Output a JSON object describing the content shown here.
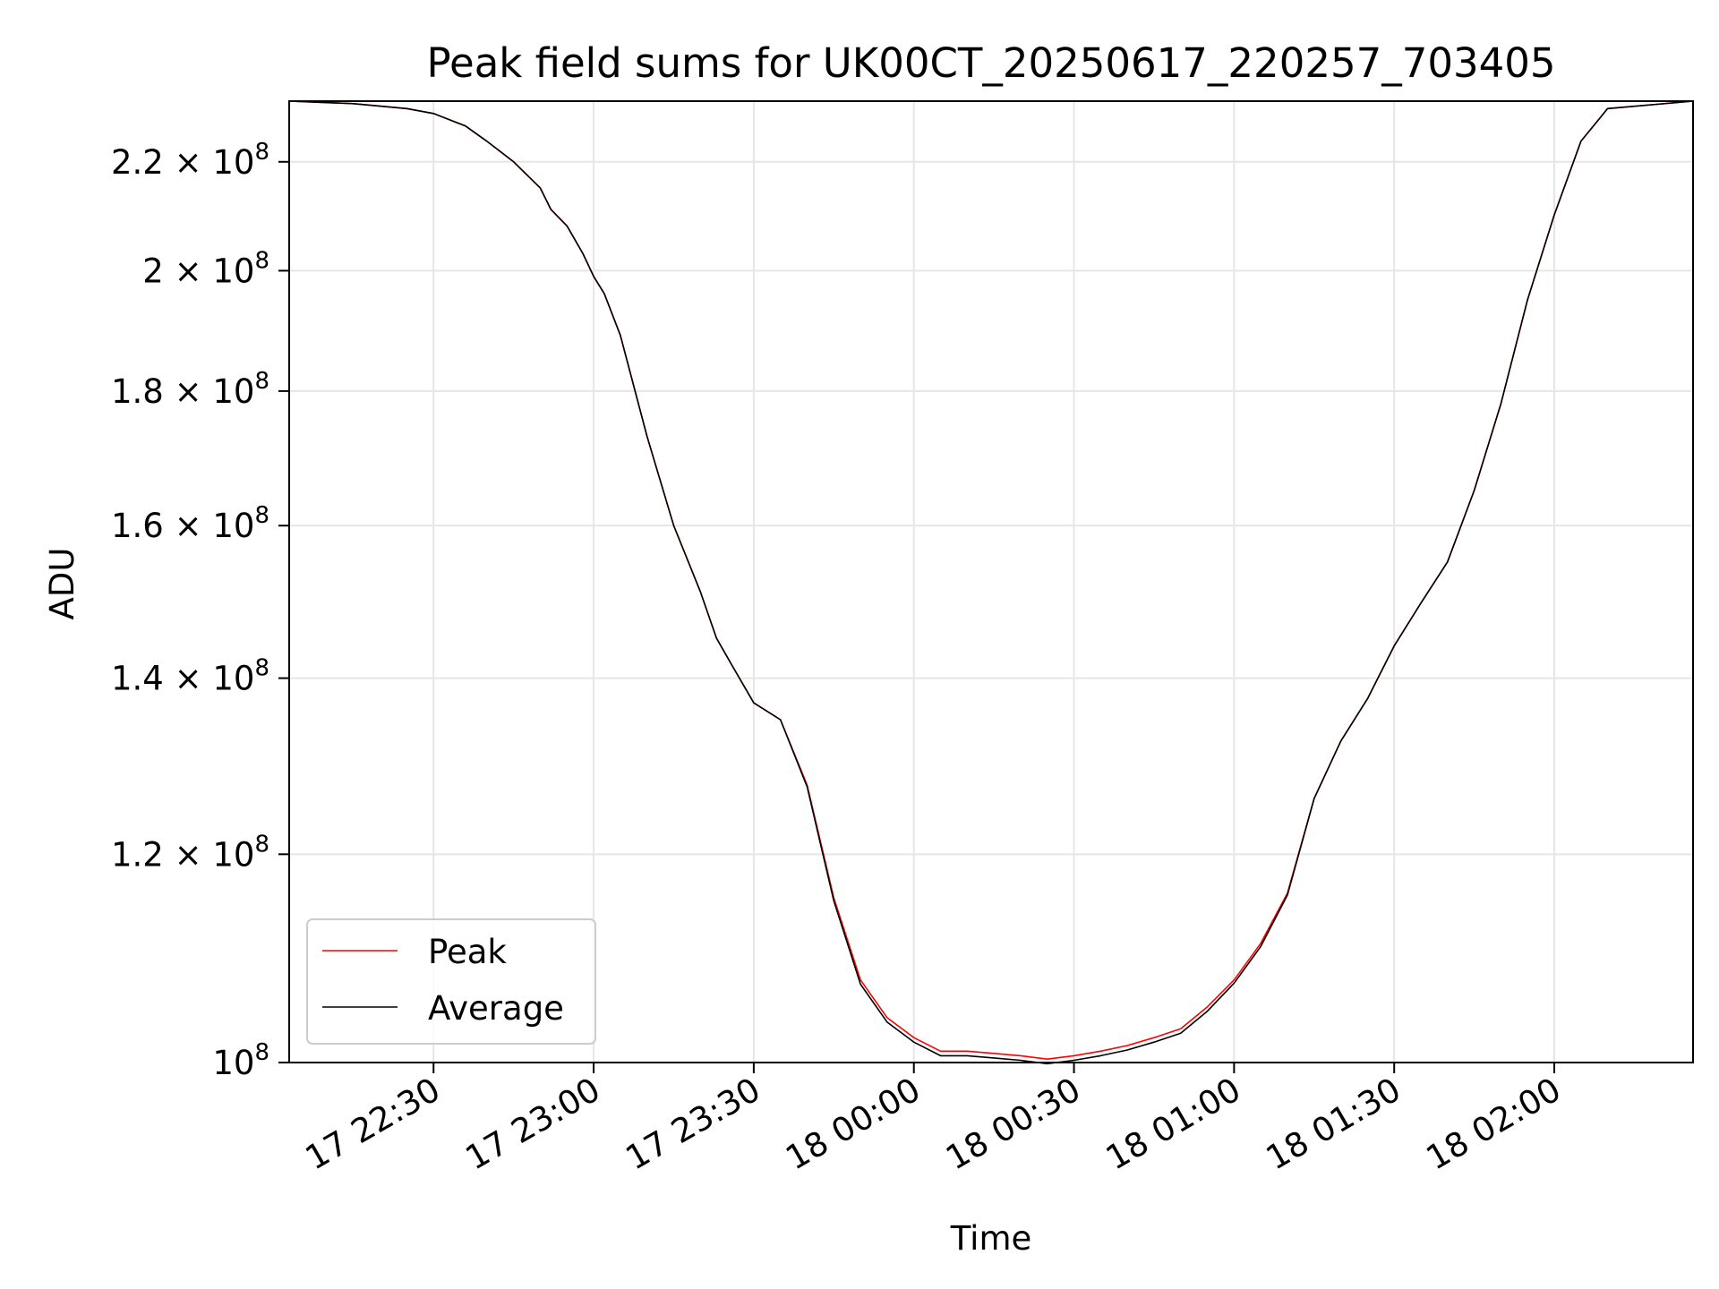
{
  "chart_data": {
    "type": "line",
    "title": "Peak field sums for UK00CT_20250617_220257_703405",
    "xlabel": "Time",
    "ylabel": "ADU",
    "x_range": [
      "2025-06-17 22:02:57",
      "2025-06-18 02:26:00"
    ],
    "ylim": [
      100000000,
      232000000
    ],
    "y_scale": "log",
    "grid": true,
    "legend_position": "lower-left",
    "x_ticks": [
      {
        "value": "2025-06-17 22:30",
        "label": "17 22:30"
      },
      {
        "value": "2025-06-17 23:00",
        "label": "17 23:00"
      },
      {
        "value": "2025-06-17 23:30",
        "label": "17 23:30"
      },
      {
        "value": "2025-06-18 00:00",
        "label": "18 00:00"
      },
      {
        "value": "2025-06-18 00:30",
        "label": "18 00:30"
      },
      {
        "value": "2025-06-18 01:00",
        "label": "18 01:00"
      },
      {
        "value": "2025-06-18 01:30",
        "label": "18 01:30"
      },
      {
        "value": "2025-06-18 02:00",
        "label": "18 02:00"
      }
    ],
    "y_ticks": [
      {
        "value": 100000000,
        "mantissa": "",
        "exponent": "8"
      },
      {
        "value": 120000000,
        "mantissa": "1.2",
        "exponent": "8"
      },
      {
        "value": 140000000,
        "mantissa": "1.4",
        "exponent": "8"
      },
      {
        "value": 160000000,
        "mantissa": "1.6",
        "exponent": "8"
      },
      {
        "value": 180000000,
        "mantissa": "1.8",
        "exponent": "8"
      },
      {
        "value": 200000000,
        "mantissa": "2",
        "exponent": "8"
      },
      {
        "value": 220000000,
        "mantissa": "2.2",
        "exponent": "8"
      }
    ],
    "tick_base": "10",
    "tick_times": "×",
    "series": [
      {
        "name": "Peak",
        "color": "#ff0000",
        "x": [
          "2025-06-17 22:03",
          "2025-06-17 22:15",
          "2025-06-17 22:25",
          "2025-06-17 22:30",
          "2025-06-17 22:36",
          "2025-06-17 22:40",
          "2025-06-17 22:45",
          "2025-06-17 22:50",
          "2025-06-17 22:52",
          "2025-06-17 22:55",
          "2025-06-17 22:58",
          "2025-06-17 23:00",
          "2025-06-17 23:02",
          "2025-06-17 23:05",
          "2025-06-17 23:10",
          "2025-06-17 23:15",
          "2025-06-17 23:20",
          "2025-06-17 23:23",
          "2025-06-17 23:26",
          "2025-06-17 23:30",
          "2025-06-17 23:35",
          "2025-06-17 23:40",
          "2025-06-17 23:45",
          "2025-06-17 23:50",
          "2025-06-17 23:55",
          "2025-06-18 00:00",
          "2025-06-18 00:05",
          "2025-06-18 00:10",
          "2025-06-18 00:15",
          "2025-06-18 00:20",
          "2025-06-18 00:25",
          "2025-06-18 00:30",
          "2025-06-18 00:35",
          "2025-06-18 00:40",
          "2025-06-18 00:45",
          "2025-06-18 00:50",
          "2025-06-18 00:55",
          "2025-06-18 01:00",
          "2025-06-18 01:05",
          "2025-06-18 01:10",
          "2025-06-18 01:15",
          "2025-06-18 01:20",
          "2025-06-18 01:25",
          "2025-06-18 01:30",
          "2025-06-18 01:35",
          "2025-06-18 01:40",
          "2025-06-18 01:45",
          "2025-06-18 01:50",
          "2025-06-18 01:55",
          "2025-06-18 02:00",
          "2025-06-18 02:05",
          "2025-06-18 02:10",
          "2025-06-18 02:26"
        ],
        "values": [
          232000000,
          231500000,
          230500000,
          229500000,
          227000000,
          224000000,
          220000000,
          215000000,
          211000000,
          208000000,
          203000000,
          199000000,
          196000000,
          189000000,
          173000000,
          160000000,
          151000000,
          145000000,
          141500000,
          137000000,
          135000000,
          127500000,
          115500000,
          107500000,
          104000000,
          102200000,
          101000000,
          101000000,
          100800000,
          100600000,
          100300000,
          100600000,
          101000000,
          101500000,
          102200000,
          103000000,
          105000000,
          107500000,
          111000000,
          116000000,
          126000000,
          132500000,
          137500000,
          144000000,
          149500000,
          155000000,
          165000000,
          178000000,
          195000000,
          210000000,
          224000000,
          230500000,
          232000000
        ]
      },
      {
        "name": "Average",
        "color": "#000000",
        "x": [
          "2025-06-17 22:03",
          "2025-06-17 22:15",
          "2025-06-17 22:25",
          "2025-06-17 22:30",
          "2025-06-17 22:36",
          "2025-06-17 22:40",
          "2025-06-17 22:45",
          "2025-06-17 22:50",
          "2025-06-17 22:52",
          "2025-06-17 22:55",
          "2025-06-17 22:58",
          "2025-06-17 23:00",
          "2025-06-17 23:02",
          "2025-06-17 23:05",
          "2025-06-17 23:10",
          "2025-06-17 23:15",
          "2025-06-17 23:20",
          "2025-06-17 23:23",
          "2025-06-17 23:26",
          "2025-06-17 23:30",
          "2025-06-17 23:35",
          "2025-06-17 23:40",
          "2025-06-17 23:45",
          "2025-06-17 23:50",
          "2025-06-17 23:55",
          "2025-06-18 00:00",
          "2025-06-18 00:05",
          "2025-06-18 00:10",
          "2025-06-18 00:15",
          "2025-06-18 00:20",
          "2025-06-18 00:25",
          "2025-06-18 00:30",
          "2025-06-18 00:35",
          "2025-06-18 00:40",
          "2025-06-18 00:45",
          "2025-06-18 00:50",
          "2025-06-18 00:55",
          "2025-06-18 01:00",
          "2025-06-18 01:05",
          "2025-06-18 01:10",
          "2025-06-18 01:15",
          "2025-06-18 01:20",
          "2025-06-18 01:25",
          "2025-06-18 01:30",
          "2025-06-18 01:35",
          "2025-06-18 01:40",
          "2025-06-18 01:45",
          "2025-06-18 01:50",
          "2025-06-18 01:55",
          "2025-06-18 02:00",
          "2025-06-18 02:05",
          "2025-06-18 02:10",
          "2025-06-18 02:26"
        ],
        "values": [
          232000000,
          231500000,
          230500000,
          229500000,
          227000000,
          224000000,
          220000000,
          215000000,
          211000000,
          208000000,
          203000000,
          199000000,
          196000000,
          189000000,
          173000000,
          160000000,
          151000000,
          145000000,
          141500000,
          137000000,
          135000000,
          127300000,
          115200000,
          107100000,
          103600000,
          101800000,
          100600000,
          100600000,
          100400000,
          100200000,
          99900000,
          100200000,
          100600000,
          101100000,
          101800000,
          102600000,
          104600000,
          107200000,
          110700000,
          115800000,
          126000000,
          132500000,
          137500000,
          144000000,
          149500000,
          155000000,
          165000000,
          178000000,
          195000000,
          210000000,
          224000000,
          230500000,
          232000000
        ]
      }
    ]
  }
}
